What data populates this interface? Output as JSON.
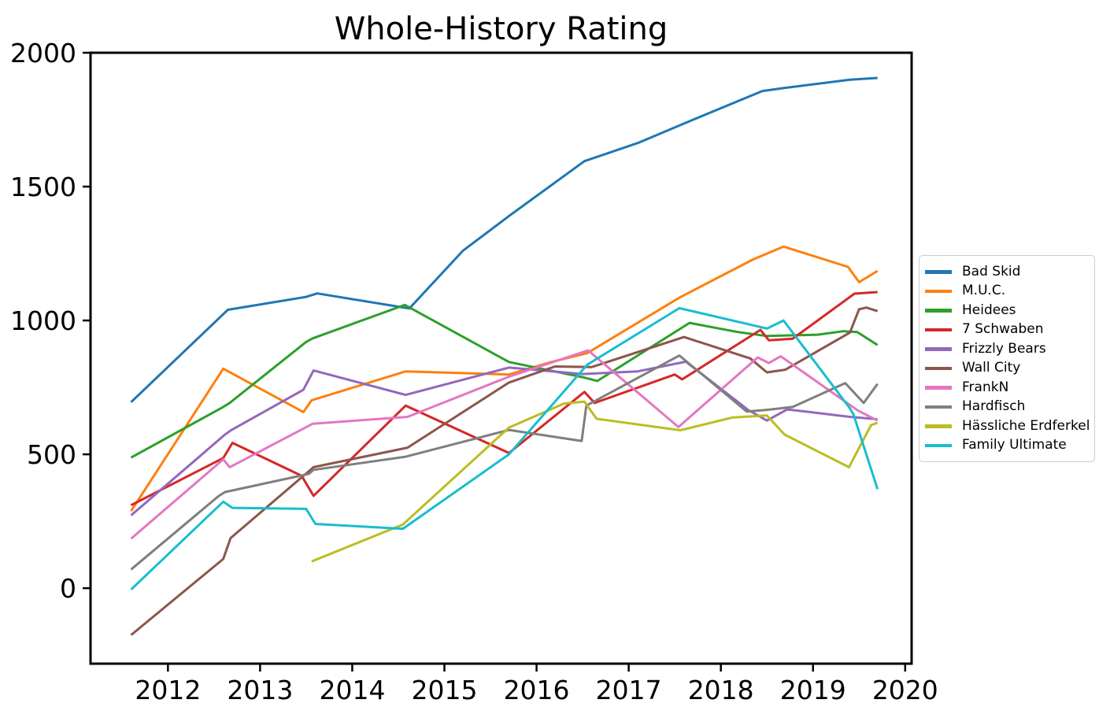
{
  "title": "Whole-History Rating",
  "axes": {
    "x_tick_labels": [
      "2012",
      "2013",
      "2014",
      "2015",
      "2016",
      "2017",
      "2018",
      "2019",
      "2020"
    ],
    "x_tick_values": [
      2012,
      2013,
      2014,
      2015,
      2016,
      2017,
      2018,
      2019,
      2020
    ],
    "y_tick_labels": [
      "0",
      "500",
      "1000",
      "1500",
      "2000"
    ],
    "y_tick_values": [
      0,
      500,
      1000,
      1500,
      2000
    ]
  },
  "chart_data": {
    "type": "line",
    "title": "Whole-History Rating",
    "xlabel": "",
    "ylabel": "",
    "xlim": [
      2011.16,
      2020.07
    ],
    "ylim": [
      -282,
      2000
    ],
    "grid": false,
    "legend_position": "outside-right",
    "series": [
      {
        "name": "Bad Skid",
        "slug": "bad-skid",
        "color": "#1f77b4",
        "points": [
          [
            2011.6,
            695
          ],
          [
            2012.65,
            1040
          ],
          [
            2013.5,
            1088
          ],
          [
            2013.62,
            1101
          ],
          [
            2014.62,
            1045
          ],
          [
            2015.2,
            1260
          ],
          [
            2015.7,
            1390
          ],
          [
            2016.52,
            1595
          ],
          [
            2017.1,
            1663
          ],
          [
            2017.7,
            1750
          ],
          [
            2018.45,
            1857
          ],
          [
            2018.68,
            1868
          ],
          [
            2019.4,
            1899
          ],
          [
            2019.7,
            1906
          ]
        ]
      },
      {
        "name": "M.U.C.",
        "slug": "muc",
        "color": "#ff7f0e",
        "points": [
          [
            2011.6,
            288
          ],
          [
            2012.6,
            820
          ],
          [
            2013.47,
            658
          ],
          [
            2013.56,
            702
          ],
          [
            2014.58,
            810
          ],
          [
            2015.7,
            798
          ],
          [
            2016.16,
            845
          ],
          [
            2016.55,
            878
          ],
          [
            2017.55,
            1085
          ],
          [
            2018.35,
            1228
          ],
          [
            2018.68,
            1276
          ],
          [
            2019.38,
            1200
          ],
          [
            2019.5,
            1143
          ],
          [
            2019.7,
            1185
          ]
        ]
      },
      {
        "name": "Heidees",
        "slug": "heidees",
        "color": "#2ca02c",
        "points": [
          [
            2011.6,
            488
          ],
          [
            2012.6,
            677
          ],
          [
            2012.67,
            692
          ],
          [
            2013.5,
            920
          ],
          [
            2013.57,
            933
          ],
          [
            2014.57,
            1058
          ],
          [
            2015.7,
            845
          ],
          [
            2016.5,
            788
          ],
          [
            2016.66,
            774
          ],
          [
            2017.66,
            991
          ],
          [
            2018.18,
            957
          ],
          [
            2018.5,
            942
          ],
          [
            2019.05,
            947
          ],
          [
            2019.33,
            960
          ],
          [
            2019.48,
            957
          ],
          [
            2019.7,
            908
          ]
        ]
      },
      {
        "name": "7 Schwaben",
        "slug": "7-schwaben",
        "color": "#d62728",
        "points": [
          [
            2011.6,
            310
          ],
          [
            2012.6,
            486
          ],
          [
            2012.7,
            543
          ],
          [
            2013.45,
            420
          ],
          [
            2013.58,
            345
          ],
          [
            2014.58,
            682
          ],
          [
            2015.7,
            505
          ],
          [
            2016.52,
            733
          ],
          [
            2016.63,
            692
          ],
          [
            2017.5,
            798
          ],
          [
            2017.58,
            780
          ],
          [
            2018.43,
            965
          ],
          [
            2018.52,
            926
          ],
          [
            2018.78,
            932
          ],
          [
            2019.45,
            1100
          ],
          [
            2019.7,
            1106
          ]
        ]
      },
      {
        "name": "Frizzly Bears",
        "slug": "frizzly-bears",
        "color": "#9467bd",
        "points": [
          [
            2011.6,
            272
          ],
          [
            2012.62,
            574
          ],
          [
            2012.68,
            589
          ],
          [
            2013.47,
            741
          ],
          [
            2013.58,
            813
          ],
          [
            2014.58,
            722
          ],
          [
            2015.7,
            824
          ],
          [
            2016.5,
            800
          ],
          [
            2017.1,
            810
          ],
          [
            2017.62,
            846
          ],
          [
            2018.3,
            665
          ],
          [
            2018.5,
            626
          ],
          [
            2018.72,
            668
          ],
          [
            2019.4,
            640
          ],
          [
            2019.7,
            631
          ]
        ]
      },
      {
        "name": "Wall City",
        "slug": "wall-city",
        "color": "#8c564b",
        "points": [
          [
            2011.6,
            -175
          ],
          [
            2012.6,
            109
          ],
          [
            2012.68,
            187
          ],
          [
            2013.53,
            437
          ],
          [
            2013.58,
            452
          ],
          [
            2014.6,
            525
          ],
          [
            2015.7,
            768
          ],
          [
            2016.2,
            828
          ],
          [
            2016.6,
            826
          ],
          [
            2017.6,
            938
          ],
          [
            2018.32,
            858
          ],
          [
            2018.5,
            806
          ],
          [
            2018.7,
            816
          ],
          [
            2019.4,
            955
          ],
          [
            2019.5,
            1042
          ],
          [
            2019.58,
            1048
          ],
          [
            2019.7,
            1035
          ]
        ]
      },
      {
        "name": "FrankN",
        "slug": "frankn",
        "color": "#e377c2",
        "points": [
          [
            2011.6,
            185
          ],
          [
            2012.6,
            481
          ],
          [
            2012.67,
            452
          ],
          [
            2013.57,
            614
          ],
          [
            2014.6,
            640
          ],
          [
            2015.7,
            790
          ],
          [
            2016.56,
            888
          ],
          [
            2017.54,
            602
          ],
          [
            2018.4,
            862
          ],
          [
            2018.52,
            841
          ],
          [
            2018.65,
            866
          ],
          [
            2019.49,
            663
          ],
          [
            2019.7,
            626
          ]
        ]
      },
      {
        "name": "Hardfisch",
        "slug": "hardfisch",
        "color": "#7f7f7f",
        "points": [
          [
            2011.6,
            70
          ],
          [
            2012.55,
            344
          ],
          [
            2012.62,
            359
          ],
          [
            2013.53,
            427
          ],
          [
            2013.58,
            442
          ],
          [
            2014.58,
            491
          ],
          [
            2015.7,
            591
          ],
          [
            2016.49,
            550
          ],
          [
            2016.54,
            682
          ],
          [
            2017.55,
            869
          ],
          [
            2018.28,
            660
          ],
          [
            2018.5,
            666
          ],
          [
            2018.78,
            677
          ],
          [
            2019.35,
            766
          ],
          [
            2019.55,
            692
          ],
          [
            2019.7,
            763
          ]
        ]
      },
      {
        "name": "Hässliche Erdferkel",
        "slug": "haessliche-erdferkel",
        "color": "#bcbd22",
        "points": [
          [
            2013.56,
            100
          ],
          [
            2014.55,
            238
          ],
          [
            2015.7,
            600
          ],
          [
            2016.3,
            690
          ],
          [
            2016.52,
            697
          ],
          [
            2016.65,
            633
          ],
          [
            2017.56,
            590
          ],
          [
            2018.13,
            638
          ],
          [
            2018.5,
            645
          ],
          [
            2018.69,
            574
          ],
          [
            2019.39,
            452
          ],
          [
            2019.63,
            609
          ],
          [
            2019.7,
            618
          ]
        ]
      },
      {
        "name": "Family Ultimate",
        "slug": "family-ultimate",
        "color": "#17becf",
        "points": [
          [
            2011.6,
            -5
          ],
          [
            2012.6,
            323
          ],
          [
            2012.7,
            300
          ],
          [
            2013.5,
            296
          ],
          [
            2013.6,
            240
          ],
          [
            2014.55,
            222
          ],
          [
            2015.7,
            500
          ],
          [
            2016.55,
            835
          ],
          [
            2017.55,
            1046
          ],
          [
            2018.5,
            970
          ],
          [
            2018.68,
            1000
          ],
          [
            2019.4,
            672
          ],
          [
            2019.44,
            648
          ],
          [
            2019.7,
            370
          ]
        ]
      }
    ]
  }
}
